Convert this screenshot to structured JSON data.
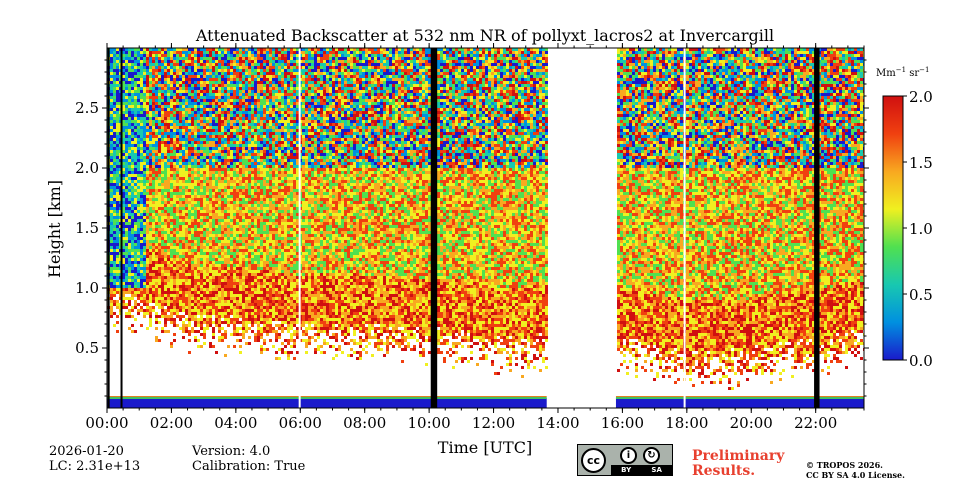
{
  "chart_data": {
    "type": "heatmap",
    "title": "Attenuated Backscatter at 532 nm NR of pollyxt_lacros2 at Invercargill",
    "xlabel": "Time [UTC]",
    "ylabel": "Height [km]",
    "xlim_hours": [
      0,
      23.5
    ],
    "ylim_km": [
      0,
      3.0
    ],
    "x_ticks": [
      {
        "value": 0,
        "label": "00:00"
      },
      {
        "value": 2,
        "label": "02:00"
      },
      {
        "value": 4,
        "label": "04:00"
      },
      {
        "value": 6,
        "label": "06:00"
      },
      {
        "value": 8,
        "label": "08:00"
      },
      {
        "value": 10,
        "label": "10:00"
      },
      {
        "value": 12,
        "label": "12:00"
      },
      {
        "value": 14,
        "label": "14:00"
      },
      {
        "value": 16,
        "label": "16:00"
      },
      {
        "value": 18,
        "label": "18:00"
      },
      {
        "value": 20,
        "label": "20:00"
      },
      {
        "value": 22,
        "label": "22:00"
      }
    ],
    "y_ticks": [
      {
        "value": 0.5,
        "label": "0.5"
      },
      {
        "value": 1.0,
        "label": "1.0"
      },
      {
        "value": 1.5,
        "label": "1.5"
      },
      {
        "value": 2.0,
        "label": "2.0"
      },
      {
        "value": 2.5,
        "label": "2.5"
      }
    ],
    "colorbar": {
      "label_prefix": "Mm",
      "label_sup1": "−1",
      "label_mid": " sr",
      "label_sup2": "−1",
      "min": 0.0,
      "max": 2.0,
      "ticks": [
        {
          "value": 0.0,
          "label": "0.0"
        },
        {
          "value": 0.5,
          "label": "0.5"
        },
        {
          "value": 1.0,
          "label": "1.0"
        },
        {
          "value": 1.5,
          "label": "1.5"
        },
        {
          "value": 2.0,
          "label": "2.0"
        }
      ],
      "colors": [
        "#1a1acb",
        "#0090e0",
        "#18c8b0",
        "#50e050",
        "#f0f020",
        "#f8a820",
        "#f04010",
        "#d01010"
      ]
    },
    "no_data_intervals_hours": [
      [
        13.65,
        15.8
      ]
    ],
    "black_columns_hours": [
      [
        0.02,
        0.07
      ],
      [
        0.42,
        0.48
      ],
      [
        10.05,
        10.25
      ],
      [
        21.95,
        22.12
      ]
    ],
    "white_columns_hours": [
      [
        5.95,
        6.0
      ],
      [
        17.9,
        17.94
      ]
    ],
    "aerosol_layer_top_km": [
      {
        "t": 0.0,
        "h": 1.0
      },
      {
        "t": 1.0,
        "h": 0.95
      },
      {
        "t": 2.0,
        "h": 0.85
      },
      {
        "t": 3.0,
        "h": 0.78
      },
      {
        "t": 4.0,
        "h": 0.78
      },
      {
        "t": 5.0,
        "h": 0.75
      },
      {
        "t": 6.0,
        "h": 0.72
      },
      {
        "t": 7.0,
        "h": 0.75
      },
      {
        "t": 8.0,
        "h": 0.72
      },
      {
        "t": 9.0,
        "h": 0.7
      },
      {
        "t": 10.0,
        "h": 0.68
      },
      {
        "t": 11.0,
        "h": 0.68
      },
      {
        "t": 12.0,
        "h": 0.62
      },
      {
        "t": 13.0,
        "h": 0.62
      },
      {
        "t": 13.65,
        "h": 0.65
      },
      {
        "t": 15.8,
        "h": 0.6
      },
      {
        "t": 17.0,
        "h": 0.55
      },
      {
        "t": 18.0,
        "h": 0.52
      },
      {
        "t": 19.0,
        "h": 0.5
      },
      {
        "t": 20.0,
        "h": 0.52
      },
      {
        "t": 21.0,
        "h": 0.58
      },
      {
        "t": 22.0,
        "h": 0.6
      },
      {
        "t": 23.5,
        "h": 0.68
      }
    ]
  },
  "footer": {
    "date": "2026-01-20",
    "lc": "LC: 2.31e+13",
    "version": "Version: 4.0",
    "calibration": "Calibration: True",
    "preliminary_line1": "Preliminary",
    "preliminary_line2": "Results.",
    "copyright_line1": "© TROPOS 2026.",
    "copyright_line2": "CC BY SA 4.0 License.",
    "license_badge": {
      "cc": "cc",
      "by": "BY",
      "sa": "SA"
    }
  }
}
